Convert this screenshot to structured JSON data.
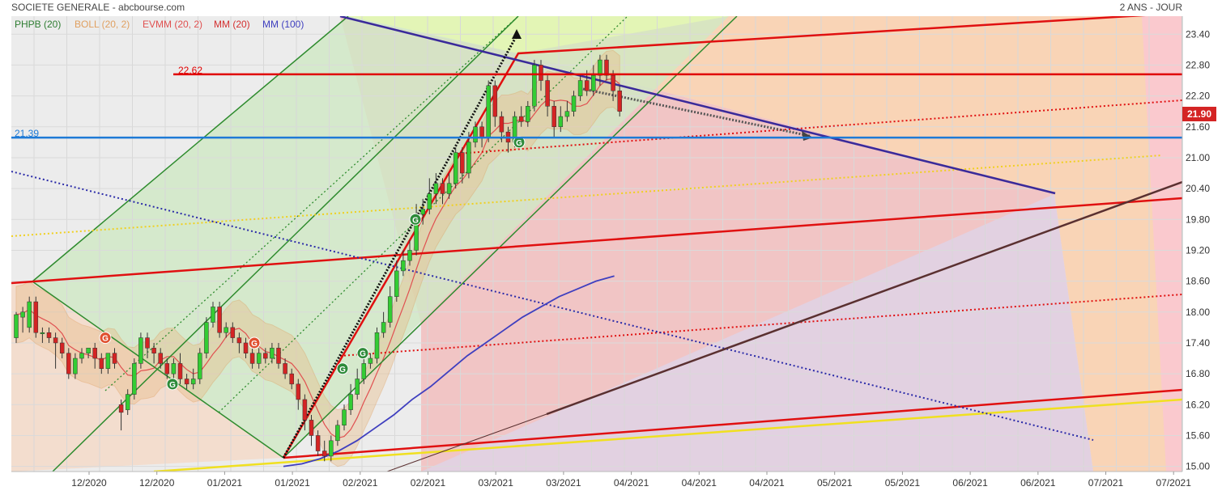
{
  "header": {
    "title": "SOCIETE GENERALE - abcbourse.com",
    "period": "2 ANS - JOUR"
  },
  "legend": [
    {
      "label": "PHPB (20)",
      "color": "#2e7d32"
    },
    {
      "label": "BOLL (20, 2)",
      "color": "#e0a060"
    },
    {
      "label": "EVMM (20, 2)",
      "color": "#e05050"
    },
    {
      "label": "MM (20)",
      "color": "#d32f2f"
    },
    {
      "label": "MM (100)",
      "color": "#3f3fbf"
    }
  ],
  "chart_data": {
    "type": "line",
    "title": "SOCIETE GENERALE - abcbourse.com",
    "ylim": [
      14.9,
      23.75
    ],
    "y_ticks": [
      15.0,
      15.6,
      16.2,
      16.8,
      17.4,
      18.0,
      18.6,
      19.2,
      19.8,
      20.4,
      21.0,
      21.6,
      22.2,
      22.8,
      23.4
    ],
    "x_tick_labels": [
      "12/2020",
      "12/2020",
      "01/2021",
      "01/2021",
      "02/2021",
      "02/2021",
      "03/2021",
      "03/2021",
      "04/2021",
      "04/2021",
      "04/2021",
      "05/2021",
      "05/2021",
      "06/2021",
      "06/2021",
      "07/2021",
      "07/2021"
    ],
    "last_price": "21.90",
    "levels": [
      {
        "label": "22.62",
        "value": 22.62,
        "color": "#e00000"
      },
      {
        "label": "21.39",
        "value": 21.39,
        "color": "#1e7ad6"
      }
    ],
    "candles": [
      [
        17.5,
        17.95,
        17.4,
        18.0
      ],
      [
        17.9,
        18.0,
        17.6,
        18.1
      ],
      [
        17.7,
        18.2,
        17.6,
        18.3
      ],
      [
        18.2,
        17.6,
        17.5,
        18.3
      ],
      [
        17.6,
        17.6,
        17.4,
        17.7
      ],
      [
        17.6,
        17.5,
        17.4,
        17.7
      ],
      [
        17.5,
        17.4,
        16.9,
        17.6
      ],
      [
        17.4,
        17.2,
        17.1,
        17.5
      ],
      [
        17.2,
        16.8,
        16.7,
        17.3
      ],
      [
        16.8,
        17.1,
        16.7,
        17.2
      ],
      [
        17.1,
        17.2,
        17.0,
        17.3
      ],
      [
        17.2,
        17.3,
        17.1,
        17.3
      ],
      [
        17.3,
        17.1,
        16.9,
        17.4
      ],
      [
        17.1,
        16.9,
        16.8,
        17.2
      ],
      [
        16.9,
        17.2,
        16.8,
        17.2
      ],
      [
        17.2,
        17.0,
        16.9,
        17.3
      ],
      [
        16.2,
        16.05,
        15.7,
        16.3
      ],
      [
        16.1,
        16.4,
        16.0,
        16.5
      ],
      [
        16.4,
        17.0,
        16.3,
        17.1
      ],
      [
        17.0,
        17.5,
        16.9,
        17.6
      ],
      [
        17.5,
        17.3,
        17.1,
        17.6
      ],
      [
        17.3,
        17.2,
        17.0,
        17.4
      ],
      [
        17.2,
        17.0,
        16.9,
        17.3
      ],
      [
        17.0,
        16.8,
        16.7,
        17.1
      ],
      [
        16.8,
        17.0,
        16.6,
        17.1
      ],
      [
        17.0,
        16.7,
        16.6,
        17.2
      ],
      [
        16.7,
        16.6,
        16.5,
        16.8
      ],
      [
        16.6,
        16.7,
        16.5,
        16.9
      ],
      [
        16.7,
        17.2,
        16.6,
        17.3
      ],
      [
        17.2,
        17.8,
        17.1,
        17.9
      ],
      [
        17.8,
        18.1,
        17.7,
        18.2
      ],
      [
        18.1,
        17.6,
        17.5,
        18.2
      ],
      [
        17.6,
        17.7,
        17.5,
        17.8
      ],
      [
        17.7,
        17.5,
        17.4,
        17.8
      ],
      [
        17.5,
        17.4,
        17.2,
        17.6
      ],
      [
        17.4,
        17.2,
        17.1,
        17.5
      ],
      [
        17.2,
        17.0,
        16.9,
        17.3
      ],
      [
        17.0,
        17.2,
        16.9,
        17.3
      ],
      [
        17.2,
        17.1,
        17.0,
        17.3
      ],
      [
        17.1,
        17.3,
        17.0,
        17.4
      ],
      [
        17.3,
        17.0,
        16.9,
        17.4
      ],
      [
        17.0,
        16.8,
        16.7,
        17.1
      ],
      [
        16.8,
        16.6,
        16.5,
        16.9
      ],
      [
        16.6,
        16.3,
        16.1,
        16.7
      ],
      [
        16.3,
        15.9,
        15.7,
        16.4
      ],
      [
        15.9,
        15.6,
        15.4,
        16.0
      ],
      [
        15.6,
        15.3,
        15.2,
        15.7
      ],
      [
        15.3,
        15.2,
        15.1,
        15.5
      ],
      [
        15.2,
        15.5,
        15.1,
        15.6
      ],
      [
        15.5,
        15.8,
        15.4,
        15.9
      ],
      [
        15.8,
        16.1,
        15.7,
        16.2
      ],
      [
        16.1,
        16.4,
        16.0,
        16.6
      ],
      [
        16.4,
        16.7,
        16.3,
        16.9
      ],
      [
        16.7,
        17.0,
        16.6,
        17.1
      ],
      [
        17.0,
        17.1,
        16.9,
        17.2
      ],
      [
        17.1,
        17.6,
        17.0,
        17.7
      ],
      [
        17.6,
        17.8,
        17.5,
        18.0
      ],
      [
        17.8,
        18.3,
        17.7,
        18.5
      ],
      [
        18.3,
        18.8,
        18.2,
        19.0
      ],
      [
        18.8,
        19.0,
        18.7,
        19.2
      ],
      [
        19.0,
        19.2,
        18.9,
        19.4
      ],
      [
        19.2,
        19.9,
        19.1,
        20.1
      ],
      [
        19.9,
        20.0,
        19.7,
        20.2
      ],
      [
        20.0,
        20.3,
        19.9,
        20.6
      ],
      [
        20.3,
        20.5,
        20.1,
        20.7
      ],
      [
        20.5,
        20.3,
        20.1,
        20.6
      ],
      [
        20.3,
        20.5,
        20.2,
        20.7
      ],
      [
        20.5,
        21.1,
        20.4,
        21.2
      ],
      [
        21.1,
        20.7,
        20.5,
        21.2
      ],
      [
        20.7,
        21.3,
        20.6,
        21.5
      ],
      [
        21.3,
        21.6,
        21.2,
        21.7
      ],
      [
        21.6,
        21.4,
        21.2,
        21.7
      ],
      [
        21.4,
        22.4,
        21.3,
        22.5
      ],
      [
        22.4,
        21.8,
        21.6,
        22.5
      ],
      [
        21.8,
        21.5,
        21.3,
        21.9
      ],
      [
        21.5,
        21.3,
        21.1,
        21.6
      ],
      [
        21.3,
        21.8,
        21.2,
        21.9
      ],
      [
        21.8,
        21.7,
        21.6,
        22.0
      ],
      [
        21.7,
        22.0,
        21.6,
        22.1
      ],
      [
        22.0,
        22.8,
        21.9,
        22.9
      ],
      [
        22.8,
        22.5,
        22.3,
        22.9
      ],
      [
        22.5,
        22.0,
        21.8,
        22.6
      ],
      [
        22.0,
        21.6,
        21.4,
        22.1
      ],
      [
        21.6,
        21.8,
        21.5,
        22.0
      ],
      [
        21.8,
        21.9,
        21.7,
        22.1
      ],
      [
        21.9,
        22.2,
        21.8,
        22.3
      ],
      [
        22.2,
        22.5,
        22.1,
        22.6
      ],
      [
        22.5,
        22.3,
        22.2,
        22.7
      ],
      [
        22.3,
        22.6,
        22.2,
        22.8
      ],
      [
        22.6,
        22.9,
        22.4,
        23.0
      ],
      [
        22.9,
        22.6,
        22.5,
        23.0
      ],
      [
        22.6,
        22.3,
        22.1,
        22.7
      ],
      [
        22.3,
        21.9,
        21.8,
        22.4
      ]
    ],
    "mm100": [
      15.0,
      15.05,
      15.15,
      15.3,
      15.5,
      15.75,
      16.0,
      16.3,
      16.55,
      16.85,
      17.15,
      17.4,
      17.65,
      17.9,
      18.1,
      18.3,
      18.45,
      18.6,
      18.7
    ],
    "signals": [
      {
        "label": "G",
        "kind": "sell",
        "value": 17.5
      },
      {
        "label": "G",
        "kind": "buy",
        "value": 16.6
      },
      {
        "label": "G",
        "kind": "sell",
        "value": 17.4
      },
      {
        "label": "G",
        "kind": "buy",
        "value": 17.2
      },
      {
        "label": "G",
        "kind": "buy",
        "value": 16.9
      },
      {
        "label": "G",
        "kind": "buy",
        "value": 19.8
      },
      {
        "label": "G",
        "kind": "buy",
        "value": 21.3
      }
    ],
    "colors": {
      "up": "#33cc33",
      "down": "#d42424",
      "sell_signal": "#e0502f",
      "buy_signal": "#2e8b3a"
    }
  }
}
